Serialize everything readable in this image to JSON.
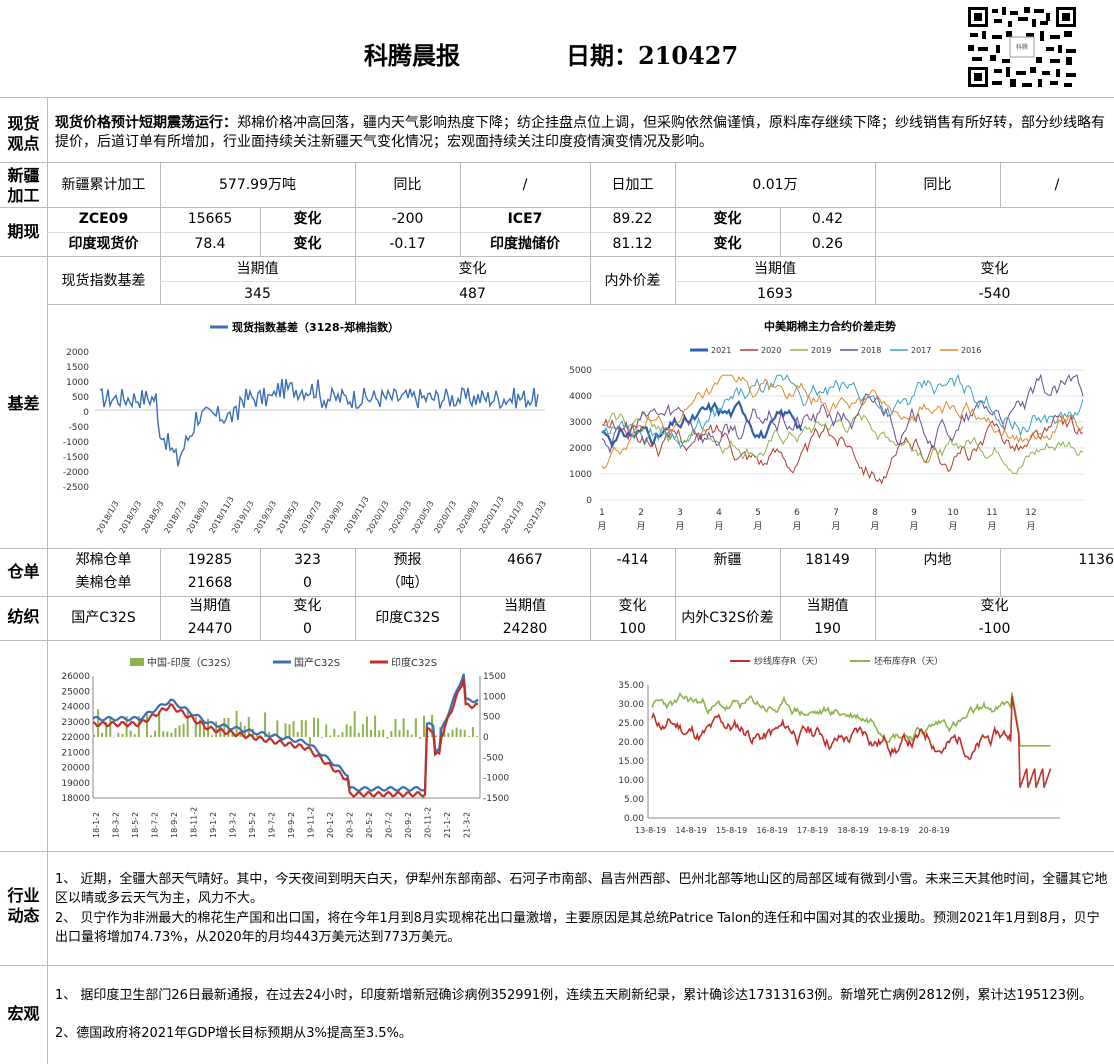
{
  "header": {
    "title": "科腾晨报",
    "date": "日期：210427"
  },
  "spot": {
    "label": "现货\n观点",
    "headline": "现货价格预计短期震荡运行：",
    "body": "郑棉价格冲高回落，疆内天气影响热度下降；纺企挂盘点位上调，但采购依然偏谨慎，原料库存继续下降；纱线销售有所好转，部分纱线略有提价，后道订单有所增加，行业面持续关注新疆天气变化情况；宏观面持续关注印度疫情演变情况及影响。"
  },
  "xinjiang": {
    "label": "新疆\n加工",
    "cells": [
      "新疆累计加工",
      "577.99万吨",
      "同比",
      "/",
      "日加工",
      "0.01万",
      "同比",
      "/"
    ]
  },
  "futures": {
    "label": "期现",
    "row1": [
      "ZCE09",
      "15665",
      "变化",
      "-200",
      "ICE7",
      "89.22",
      "变化",
      "0.42"
    ],
    "row2": [
      "印度现货价",
      "78.4",
      "变化",
      "-0.17",
      "印度抛储价",
      "81.12",
      "变化",
      "0.26"
    ]
  },
  "basis": {
    "label": "基差",
    "left_name": "现货指数基差",
    "right_name": "内外价差",
    "headers": [
      "当期值",
      "变化",
      "当期值",
      "变化"
    ],
    "values": [
      "345",
      "487",
      "1693",
      "-540"
    ]
  },
  "chart_basis": {
    "legend": "现货指数基差（3128-郑棉指数）",
    "y_ticks": [
      "2000",
      "1500",
      "1000",
      "500",
      "0",
      "-500",
      "-1000",
      "-1500",
      "-2000",
      "-2500"
    ],
    "x_ticks": [
      "2018/1/3",
      "2018/3/3",
      "2018/5/3",
      "2018/7/3",
      "2018/9/3",
      "2018/11/3",
      "2019/1/3",
      "2019/3/3",
      "2019/5/3",
      "2019/7/3",
      "2019/9/3",
      "2019/11/3",
      "2020/1/3",
      "2020/3/3",
      "2020/5/3",
      "2020/7/3",
      "2020/9/3",
      "2020/11/3",
      "2021/1/3",
      "2021/3/3"
    ],
    "color": "#3b6eb3"
  },
  "chart_spread": {
    "title": "中美期棉主力合约价差走势",
    "y_ticks": [
      "5000",
      "4000",
      "3000",
      "2000",
      "1000",
      "0"
    ],
    "x_ticks": [
      "1\n月",
      "2\n月",
      "3\n月",
      "4\n月",
      "5\n月",
      "6\n月",
      "7\n月",
      "8\n月",
      "9\n月",
      "10\n月",
      "11\n月",
      "12\n月"
    ],
    "series": [
      {
        "name": "2021",
        "color": "#2e5fa8"
      },
      {
        "name": "2020",
        "color": "#b03a32"
      },
      {
        "name": "2019",
        "color": "#8fb34c"
      },
      {
        "name": "2018",
        "color": "#6a4c93"
      },
      {
        "name": "2017",
        "color": "#3aa0c4"
      },
      {
        "name": "2016",
        "color": "#e0882e"
      }
    ]
  },
  "warehouse": {
    "label": "仓单",
    "row1": [
      "郑棉仓单",
      "19285",
      "323",
      "预报",
      "4667",
      "-414",
      "新疆",
      "18149",
      "内地",
      "1136"
    ],
    "row2": [
      "美棉仓单",
      "21668",
      "0",
      "（吨）"
    ]
  },
  "textile": {
    "label": "纺织",
    "groups": [
      {
        "name": "国产C32S",
        "h1": "当期值",
        "h2": "变化",
        "v1": "24470",
        "v2": "0"
      },
      {
        "name": "印度C32S",
        "h1": "当期值",
        "h2": "变化",
        "v1": "24280",
        "v2": "100"
      },
      {
        "name": "内外C32S价差",
        "h1": "当期值",
        "h2": "变化",
        "v1": "190",
        "v2": "-100"
      }
    ]
  },
  "chart_yarn": {
    "legend": [
      {
        "name": "中国-印度（C32S）",
        "color": "#8fb34c"
      },
      {
        "name": "国产C32S",
        "color": "#3b6eb3"
      },
      {
        "name": "印度C32S",
        "color": "#c0302a"
      }
    ],
    "y_left": [
      "26000",
      "25000",
      "24000",
      "23000",
      "22000",
      "21000",
      "20000",
      "19000",
      "18000"
    ],
    "y_right": [
      "1500",
      "1000",
      "500",
      "0",
      "-500",
      "-1000",
      "-1500"
    ],
    "x_ticks": [
      "18-1-2",
      "18-3-2",
      "18-5-2",
      "18-7-2",
      "18-9-2",
      "18-11-2",
      "19-1-2",
      "19-3-2",
      "19-5-2",
      "19-7-2",
      "19-9-2",
      "19-11-2",
      "20-1-2",
      "20-3-2",
      "20-5-2",
      "20-7-2",
      "20-9-2",
      "20-11-2",
      "21-1-2",
      "21-3-2"
    ]
  },
  "chart_stock": {
    "legend": [
      {
        "name": "纱线库存R（天）",
        "color": "#c0302a"
      },
      {
        "name": "坯布库存R（天）",
        "color": "#8fb34c"
      }
    ],
    "y_ticks": [
      "35.00",
      "30.00",
      "25.00",
      "20.00",
      "15.00",
      "10.00",
      "5.00",
      "0.00"
    ],
    "x_ticks": [
      "13-8-19",
      "14-8-19",
      "15-8-19",
      "16-8-19",
      "17-8-19",
      "18-8-19",
      "19-8-19",
      "20-8-19"
    ]
  },
  "industry": {
    "label": "行业\n动态",
    "p1": "1、 近期，全疆大部天气晴好。其中，今天夜间到明天白天，伊犁州东部南部、石河子市南部、昌吉州西部、巴州北部等地山区的局部区域有微到小雪。未来三天其他时间，全疆其它地区以晴或多云天气为主，风力不大。",
    "p2": "2、 贝宁作为非洲最大的棉花生产国和出口国，将在今年1月到8月实现棉花出口量激增，主要原因是其总统Patrice Talon的连任和中国对其的农业援助。预测2021年1月到8月，贝宁出口量将增加74.73%，从2020年的月均443万美元达到773万美元。"
  },
  "macro": {
    "label": "宏观",
    "p1": "1、 据印度卫生部门26日最新通报，在过去24小时，印度新增新冠确诊病例352991例，连续五天刷新纪录，累计确诊达17313163例。新增死亡病例2812例，累计达195123例。",
    "p2": "2、德国政府将2021年GDP增长目标预期从3%提高至3.5%。"
  }
}
